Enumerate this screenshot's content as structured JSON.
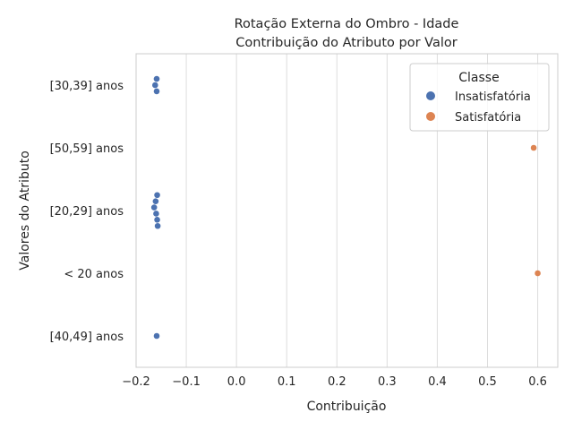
{
  "chart_data": {
    "type": "scatter",
    "title_lines": [
      "Rotação Externa do Ombro - Idade",
      "Contribuição do Atributo por Valor"
    ],
    "xlabel": "Contribuição",
    "ylabel": "Valores do Atributo",
    "xlim": [
      -0.2,
      0.64
    ],
    "xticks": [
      -0.2,
      -0.1,
      0.0,
      0.1,
      0.2,
      0.3,
      0.4,
      0.5,
      0.6
    ],
    "xtick_labels": [
      "−0.2",
      "−0.1",
      "0.0",
      "0.1",
      "0.2",
      "0.3",
      "0.4",
      "0.5",
      "0.6"
    ],
    "categories": [
      "[30,39] anos",
      "[50,59] anos",
      "[20,29] anos",
      "< 20 anos",
      "[40,49] anos"
    ],
    "grid": "vertical",
    "legend": {
      "title": "Classe",
      "placement": "top-right",
      "entries": [
        {
          "name": "Insatisfatória",
          "color": "#4c72b0"
        },
        {
          "name": "Satisfatória",
          "color": "#dd8452"
        }
      ]
    },
    "series": [
      {
        "name": "Insatisfatória",
        "color": "#4c72b0",
        "points": [
          {
            "category": "[30,39] anos",
            "x": -0.159
          },
          {
            "category": "[30,39] anos",
            "x": -0.162
          },
          {
            "category": "[30,39] anos",
            "x": -0.159
          },
          {
            "category": "[20,29] anos",
            "x": -0.158
          },
          {
            "category": "[20,29] anos",
            "x": -0.161
          },
          {
            "category": "[20,29] anos",
            "x": -0.164
          },
          {
            "category": "[20,29] anos",
            "x": -0.16
          },
          {
            "category": "[20,29] anos",
            "x": -0.158
          },
          {
            "category": "[20,29] anos",
            "x": -0.157
          },
          {
            "category": "[40,49] anos",
            "x": -0.159
          }
        ]
      },
      {
        "name": "Satisfatória",
        "color": "#dd8452",
        "points": [
          {
            "category": "[50,59] anos",
            "x": 0.592
          },
          {
            "category": "< 20 anos",
            "x": 0.6
          }
        ]
      }
    ]
  }
}
